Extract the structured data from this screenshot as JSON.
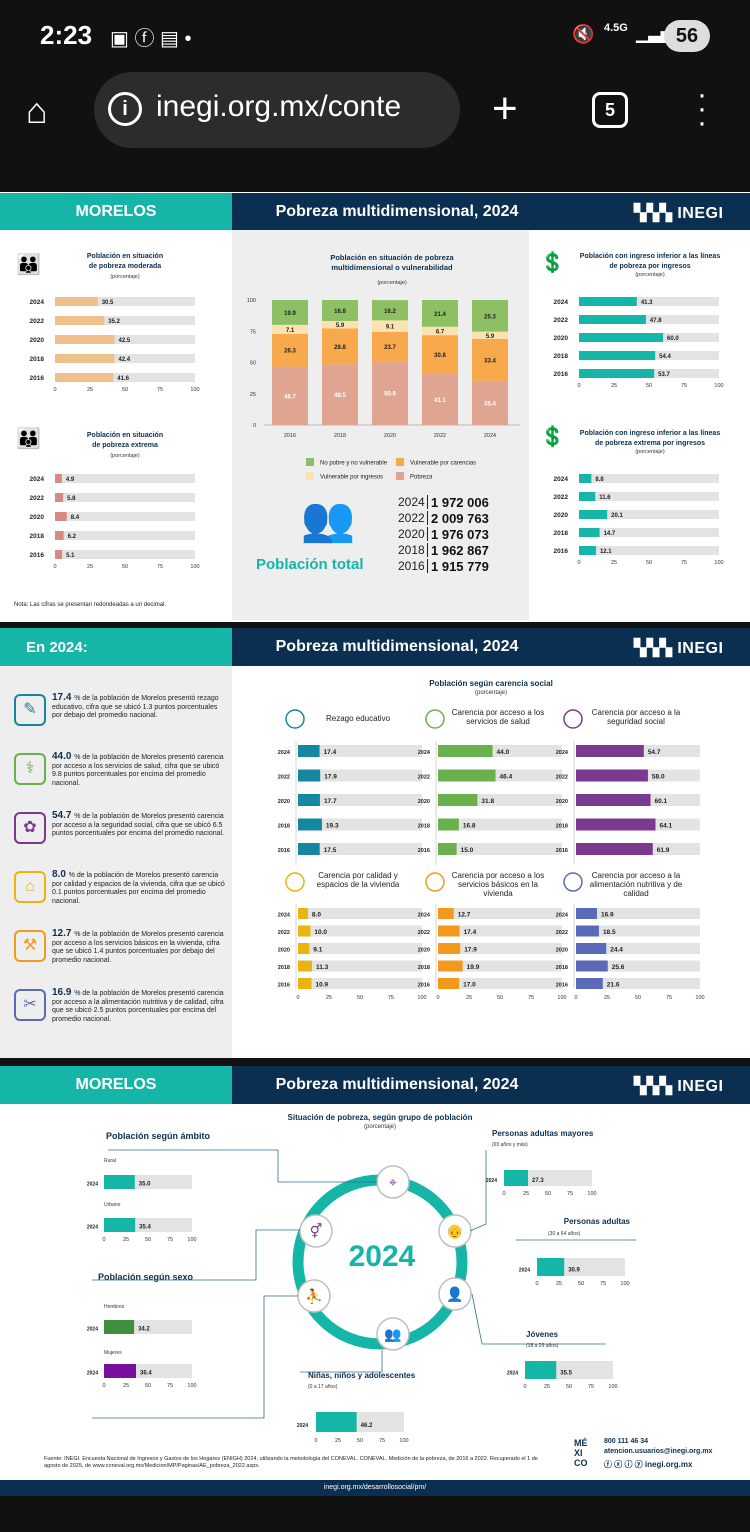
{
  "status": {
    "time": "2:23",
    "network": "4.5G",
    "battery": "56"
  },
  "browser": {
    "url": "inegi.org.mx/conte",
    "tabs": "5"
  },
  "sec1": {
    "state": "MORELOS",
    "title": "Pobreza multidimensional, 2024",
    "logo": "INEGI",
    "note": "Nota: Las cifras se presentan redondeadas a un decimal.",
    "pop_label": "Población total",
    "population": [
      {
        "year": "2024",
        "value": "1 972 006"
      },
      {
        "year": "2022",
        "value": "2 009 763"
      },
      {
        "year": "2020",
        "value": "1 976 073"
      },
      {
        "year": "2018",
        "value": "1 962 867"
      },
      {
        "year": "2016",
        "value": "1 915 779"
      }
    ],
    "legend": [
      "No pobre y no vulnerable",
      "Vulnerable por carencias",
      "Vulnerable por ingresos",
      "Pobreza"
    ]
  },
  "sec2": {
    "left_title": "En 2024:",
    "title": "Pobreza multidimensional, 2024",
    "logo": "INEGI",
    "chart_title": "Población según carencia social",
    "chart_sub": "(porcentaje)",
    "items": [
      {
        "pct": "17.4",
        "text": "% de la población de Morelos presentó rezago educativo, cifra que se ubicó 1.3 puntos porcentuales por debajo del promedio nacional."
      },
      {
        "pct": "44.0",
        "text": "% de la población de Morelos presentó carencia por acceso a los servicios de salud, cifra que se ubicó 9.8 puntos porcentuales por encima del promedio nacional."
      },
      {
        "pct": "54.7",
        "text": "% de la población de Morelos presentó carencia por acceso a la seguridad social, cifra que se ubicó 6.5 puntos porcentuales por encima del promedio nacional."
      },
      {
        "pct": "8.0",
        "text": "% de la población de Morelos presentó carencia por calidad y espacios de la vivienda, cifra que se ubicó 0.1 puntos porcentuales por encima del promedio nacional."
      },
      {
        "pct": "12.7",
        "text": "% de la población de Morelos presentó carencia por acceso a los servicios básicos en la vivienda, cifra que se ubicó 1.4 puntos porcentuales por debajo del promedio nacional."
      },
      {
        "pct": "16.9",
        "text": "% de la población de Morelos presentó carencia por acceso a la alimentación nutritiva y de calidad, cifra que se ubicó 2.5 puntos porcentuales por encima del promedio nacional."
      }
    ]
  },
  "sec3": {
    "state": "MORELOS",
    "title": "Pobreza multidimensional, 2024",
    "logo": "INEGI",
    "center_title": "Situación de pobreza, según grupo de población",
    "center_sub": "(porcentaje)",
    "year": "2024",
    "ambito_title": "Población según ámbito",
    "sexo_title": "Población según sexo",
    "source": "Fuente: INEGI. Encuesta Nacional de Ingresos y Gastos de los Hogares (ENIGH) 2024, utilizando la metodología del CONEVAL. CONEVAL. Medición de la pobreza, de 2016 a 2022. Recuperado el 1 de agosto de 2025, de www.coneval.org.mx/Medicion/MP/Paginas/AE_pobreza_2022.aspx.",
    "phone": "800 111 46 34",
    "email": "atencion.usuarios@inegi.org.mx",
    "web": "inegi.org.mx",
    "mexico": "MÉ XI CO",
    "footer": "inegi.org.mx/desarrollosocial/pm/"
  },
  "chart_data": [
    {
      "type": "bar",
      "title": "Población en situación de pobreza moderada",
      "subtitle": "(porcentaje)",
      "categories": [
        "2024",
        "2022",
        "2020",
        "2018",
        "2016"
      ],
      "values": [
        30.5,
        35.2,
        42.5,
        42.4,
        41.6
      ],
      "xlim": [
        0,
        100
      ],
      "color": "#f0c08a"
    },
    {
      "type": "bar",
      "title": "Población en situación de pobreza extrema",
      "subtitle": "(porcentaje)",
      "categories": [
        "2024",
        "2022",
        "2020",
        "2018",
        "2016"
      ],
      "values": [
        4.9,
        5.8,
        8.4,
        6.2,
        5.1
      ],
      "xlim": [
        0,
        100
      ],
      "color": "#d68b82"
    },
    {
      "type": "bar",
      "title": "Población en situación de pobreza multidimensional o vulnerabilidad",
      "subtitle": "(porcentaje)",
      "categories": [
        "2016",
        "2018",
        "2020",
        "2022",
        "2024"
      ],
      "ylim": [
        0,
        100
      ],
      "series": [
        {
          "name": "Pobreza",
          "values": [
            46.7,
            48.5,
            50.9,
            41.1,
            35.4
          ],
          "color": "#e0a590"
        },
        {
          "name": "Vulnerable por carencias",
          "values": [
            26.3,
            28.8,
            23.7,
            30.8,
            33.4
          ],
          "color": "#f7a94b"
        },
        {
          "name": "Vulnerable por ingresos",
          "values": [
            7.1,
            5.9,
            9.1,
            6.7,
            5.9
          ],
          "color": "#fbe2b0"
        },
        {
          "name": "No pobre y no vulnerable",
          "values": [
            19.9,
            16.8,
            16.2,
            21.4,
            25.3
          ],
          "color": "#8cc063"
        }
      ]
    },
    {
      "type": "bar",
      "title": "Población con ingreso inferior a las líneas de pobreza por ingresos",
      "subtitle": "(porcentaje)",
      "categories": [
        "2024",
        "2022",
        "2020",
        "2018",
        "2016"
      ],
      "values": [
        41.3,
        47.8,
        60.0,
        54.4,
        53.7
      ],
      "xlim": [
        0,
        100
      ],
      "color": "#15b5a8"
    },
    {
      "type": "bar",
      "title": "Población con ingreso inferior a las líneas de pobreza extrema por ingresos",
      "subtitle": "(porcentaje)",
      "categories": [
        "2024",
        "2022",
        "2020",
        "2018",
        "2016"
      ],
      "values": [
        8.8,
        11.6,
        20.1,
        14.7,
        12.1
      ],
      "xlim": [
        0,
        100
      ],
      "color": "#15b5a8"
    },
    {
      "type": "bar",
      "title": "Rezago educativo",
      "categories": [
        "2024",
        "2022",
        "2020",
        "2018",
        "2016"
      ],
      "values": [
        17.4,
        17.9,
        17.7,
        19.3,
        17.5
      ],
      "xlim": [
        0,
        100
      ],
      "color": "#1687a0"
    },
    {
      "type": "bar",
      "title": "Carencia por acceso a los servicios de salud",
      "categories": [
        "2024",
        "2022",
        "2020",
        "2018",
        "2016"
      ],
      "values": [
        44.0,
        46.4,
        31.8,
        16.8,
        15.0
      ],
      "xlim": [
        0,
        100
      ],
      "color": "#6ab04c"
    },
    {
      "type": "bar",
      "title": "Carencia por acceso a la seguridad social",
      "categories": [
        "2024",
        "2022",
        "2020",
        "2018",
        "2016"
      ],
      "values": [
        54.7,
        58.0,
        60.1,
        64.1,
        61.9
      ],
      "xlim": [
        0,
        100
      ],
      "color": "#7b3a8e"
    },
    {
      "type": "bar",
      "title": "Carencia por calidad y espacios de la vivienda",
      "categories": [
        "2024",
        "2022",
        "2020",
        "2018",
        "2016"
      ],
      "values": [
        8.0,
        10.0,
        9.1,
        11.3,
        10.9
      ],
      "xlim": [
        0,
        100
      ],
      "color": "#e8b40d"
    },
    {
      "type": "bar",
      "title": "Carencia por acceso a los servicios básicos en la vivienda",
      "categories": [
        "2024",
        "2022",
        "2020",
        "2018",
        "2016"
      ],
      "values": [
        12.7,
        17.4,
        17.9,
        19.9,
        17.0
      ],
      "xlim": [
        0,
        100
      ],
      "color": "#f39a1e"
    },
    {
      "type": "bar",
      "title": "Carencia por acceso a la alimentación nutritiva y de calidad",
      "categories": [
        "2024",
        "2022",
        "2020",
        "2018",
        "2016"
      ],
      "values": [
        16.9,
        18.5,
        24.4,
        25.6,
        21.6
      ],
      "xlim": [
        0,
        100
      ],
      "color": "#5b6ab8"
    },
    {
      "type": "bar",
      "title": "Rural",
      "categories": [
        "2024"
      ],
      "values": [
        35.0
      ],
      "xlim": [
        0,
        100
      ],
      "color": "#15b5a8"
    },
    {
      "type": "bar",
      "title": "Urbano",
      "categories": [
        "2024"
      ],
      "values": [
        35.4
      ],
      "xlim": [
        0,
        100
      ],
      "color": "#15b5a8"
    },
    {
      "type": "bar",
      "title": "Hombres",
      "categories": [
        "2024"
      ],
      "values": [
        34.2
      ],
      "xlim": [
        0,
        100
      ],
      "color": "#3f8f3f"
    },
    {
      "type": "bar",
      "title": "Mujeres",
      "categories": [
        "2024"
      ],
      "values": [
        36.4
      ],
      "xlim": [
        0,
        100
      ],
      "color": "#7a0f9e"
    },
    {
      "type": "bar",
      "title": "Personas adultas mayores",
      "subtitle": "(65 años y más)",
      "categories": [
        "2024"
      ],
      "values": [
        27.3
      ],
      "xlim": [
        0,
        100
      ],
      "color": "#15b5a8"
    },
    {
      "type": "bar",
      "title": "Personas adultas",
      "subtitle": "(30 a 64 años)",
      "categories": [
        "2024"
      ],
      "values": [
        30.9
      ],
      "xlim": [
        0,
        100
      ],
      "color": "#15b5a8"
    },
    {
      "type": "bar",
      "title": "Jóvenes",
      "subtitle": "(18 a 29 años)",
      "categories": [
        "2024"
      ],
      "values": [
        35.5
      ],
      "xlim": [
        0,
        100
      ],
      "color": "#15b5a8"
    },
    {
      "type": "bar",
      "title": "Niñas, niños y adolescentes",
      "subtitle": "(0 a 17 años)",
      "categories": [
        "2024"
      ],
      "values": [
        46.2
      ],
      "xlim": [
        0,
        100
      ],
      "color": "#15b5a8"
    }
  ]
}
